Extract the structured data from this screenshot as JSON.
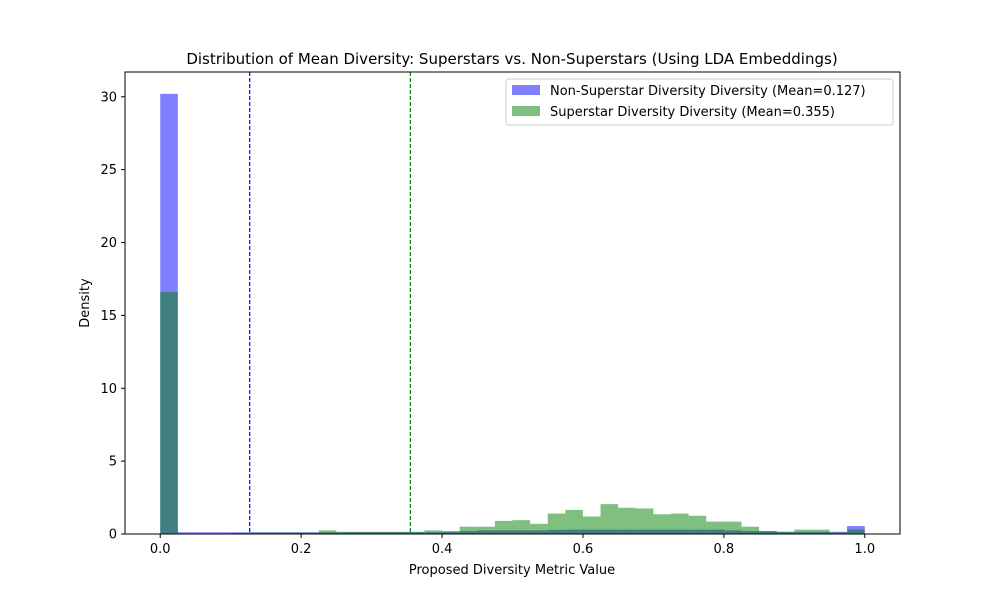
{
  "chart_data": {
    "type": "histogram",
    "title": "Distribution of Mean Diversity: Superstars vs. Non-Superstars (Using LDA Embeddings)",
    "xlabel": "Proposed Diversity Metric Value",
    "ylabel": "Density",
    "xlim": [
      -0.05,
      1.05
    ],
    "ylim": [
      0,
      31.7
    ],
    "x_ticks": [
      0.0,
      0.2,
      0.4,
      0.6,
      0.8,
      1.0
    ],
    "x_tick_labels": [
      "0.0",
      "0.2",
      "0.4",
      "0.6",
      "0.8",
      "1.0"
    ],
    "y_ticks": [
      0,
      5,
      10,
      15,
      20,
      25,
      30
    ],
    "y_tick_labels": [
      "0",
      "5",
      "10",
      "15",
      "20",
      "25",
      "30"
    ],
    "bin_edges": [
      0.0,
      0.025,
      0.05,
      0.075,
      0.1,
      0.125,
      0.15,
      0.175,
      0.2,
      0.225,
      0.25,
      0.275,
      0.3,
      0.325,
      0.35,
      0.375,
      0.4,
      0.425,
      0.45,
      0.475,
      0.5,
      0.525,
      0.55,
      0.575,
      0.6,
      0.625,
      0.65,
      0.675,
      0.7,
      0.725,
      0.75,
      0.775,
      0.8,
      0.825,
      0.85,
      0.875,
      0.9,
      0.925,
      0.95,
      0.975,
      1.0
    ],
    "series": [
      {
        "name": "Non-Superstar Diversity Diversity (Mean=0.127)",
        "color": "#0000ff",
        "alpha": 0.5,
        "mean": 0.127,
        "values": [
          30.2,
          0.12,
          0.12,
          0.12,
          0.12,
          0.12,
          0.12,
          0.12,
          0.12,
          0.12,
          0.12,
          0.12,
          0.12,
          0.12,
          0.12,
          0.12,
          0.15,
          0.2,
          0.25,
          0.25,
          0.25,
          0.25,
          0.28,
          0.3,
          0.3,
          0.3,
          0.3,
          0.3,
          0.3,
          0.3,
          0.3,
          0.3,
          0.25,
          0.2,
          0.2,
          0.15,
          0.15,
          0.15,
          0.15,
          0.55
        ]
      },
      {
        "name": "Superstar Diversity Diversity (Mean=0.355)",
        "color": "#008000",
        "alpha": 0.5,
        "mean": 0.355,
        "values": [
          16.6,
          0.0,
          0.0,
          0.0,
          0.05,
          0.1,
          0.1,
          0.1,
          0.1,
          0.25,
          0.15,
          0.15,
          0.15,
          0.15,
          0.15,
          0.25,
          0.2,
          0.5,
          0.5,
          0.9,
          0.95,
          0.7,
          1.4,
          1.65,
          1.2,
          2.05,
          1.8,
          1.75,
          1.35,
          1.4,
          1.25,
          0.85,
          0.85,
          0.5,
          0.2,
          0.15,
          0.3,
          0.3,
          0.1,
          0.3
        ]
      }
    ],
    "legend_position": "upper-right"
  }
}
